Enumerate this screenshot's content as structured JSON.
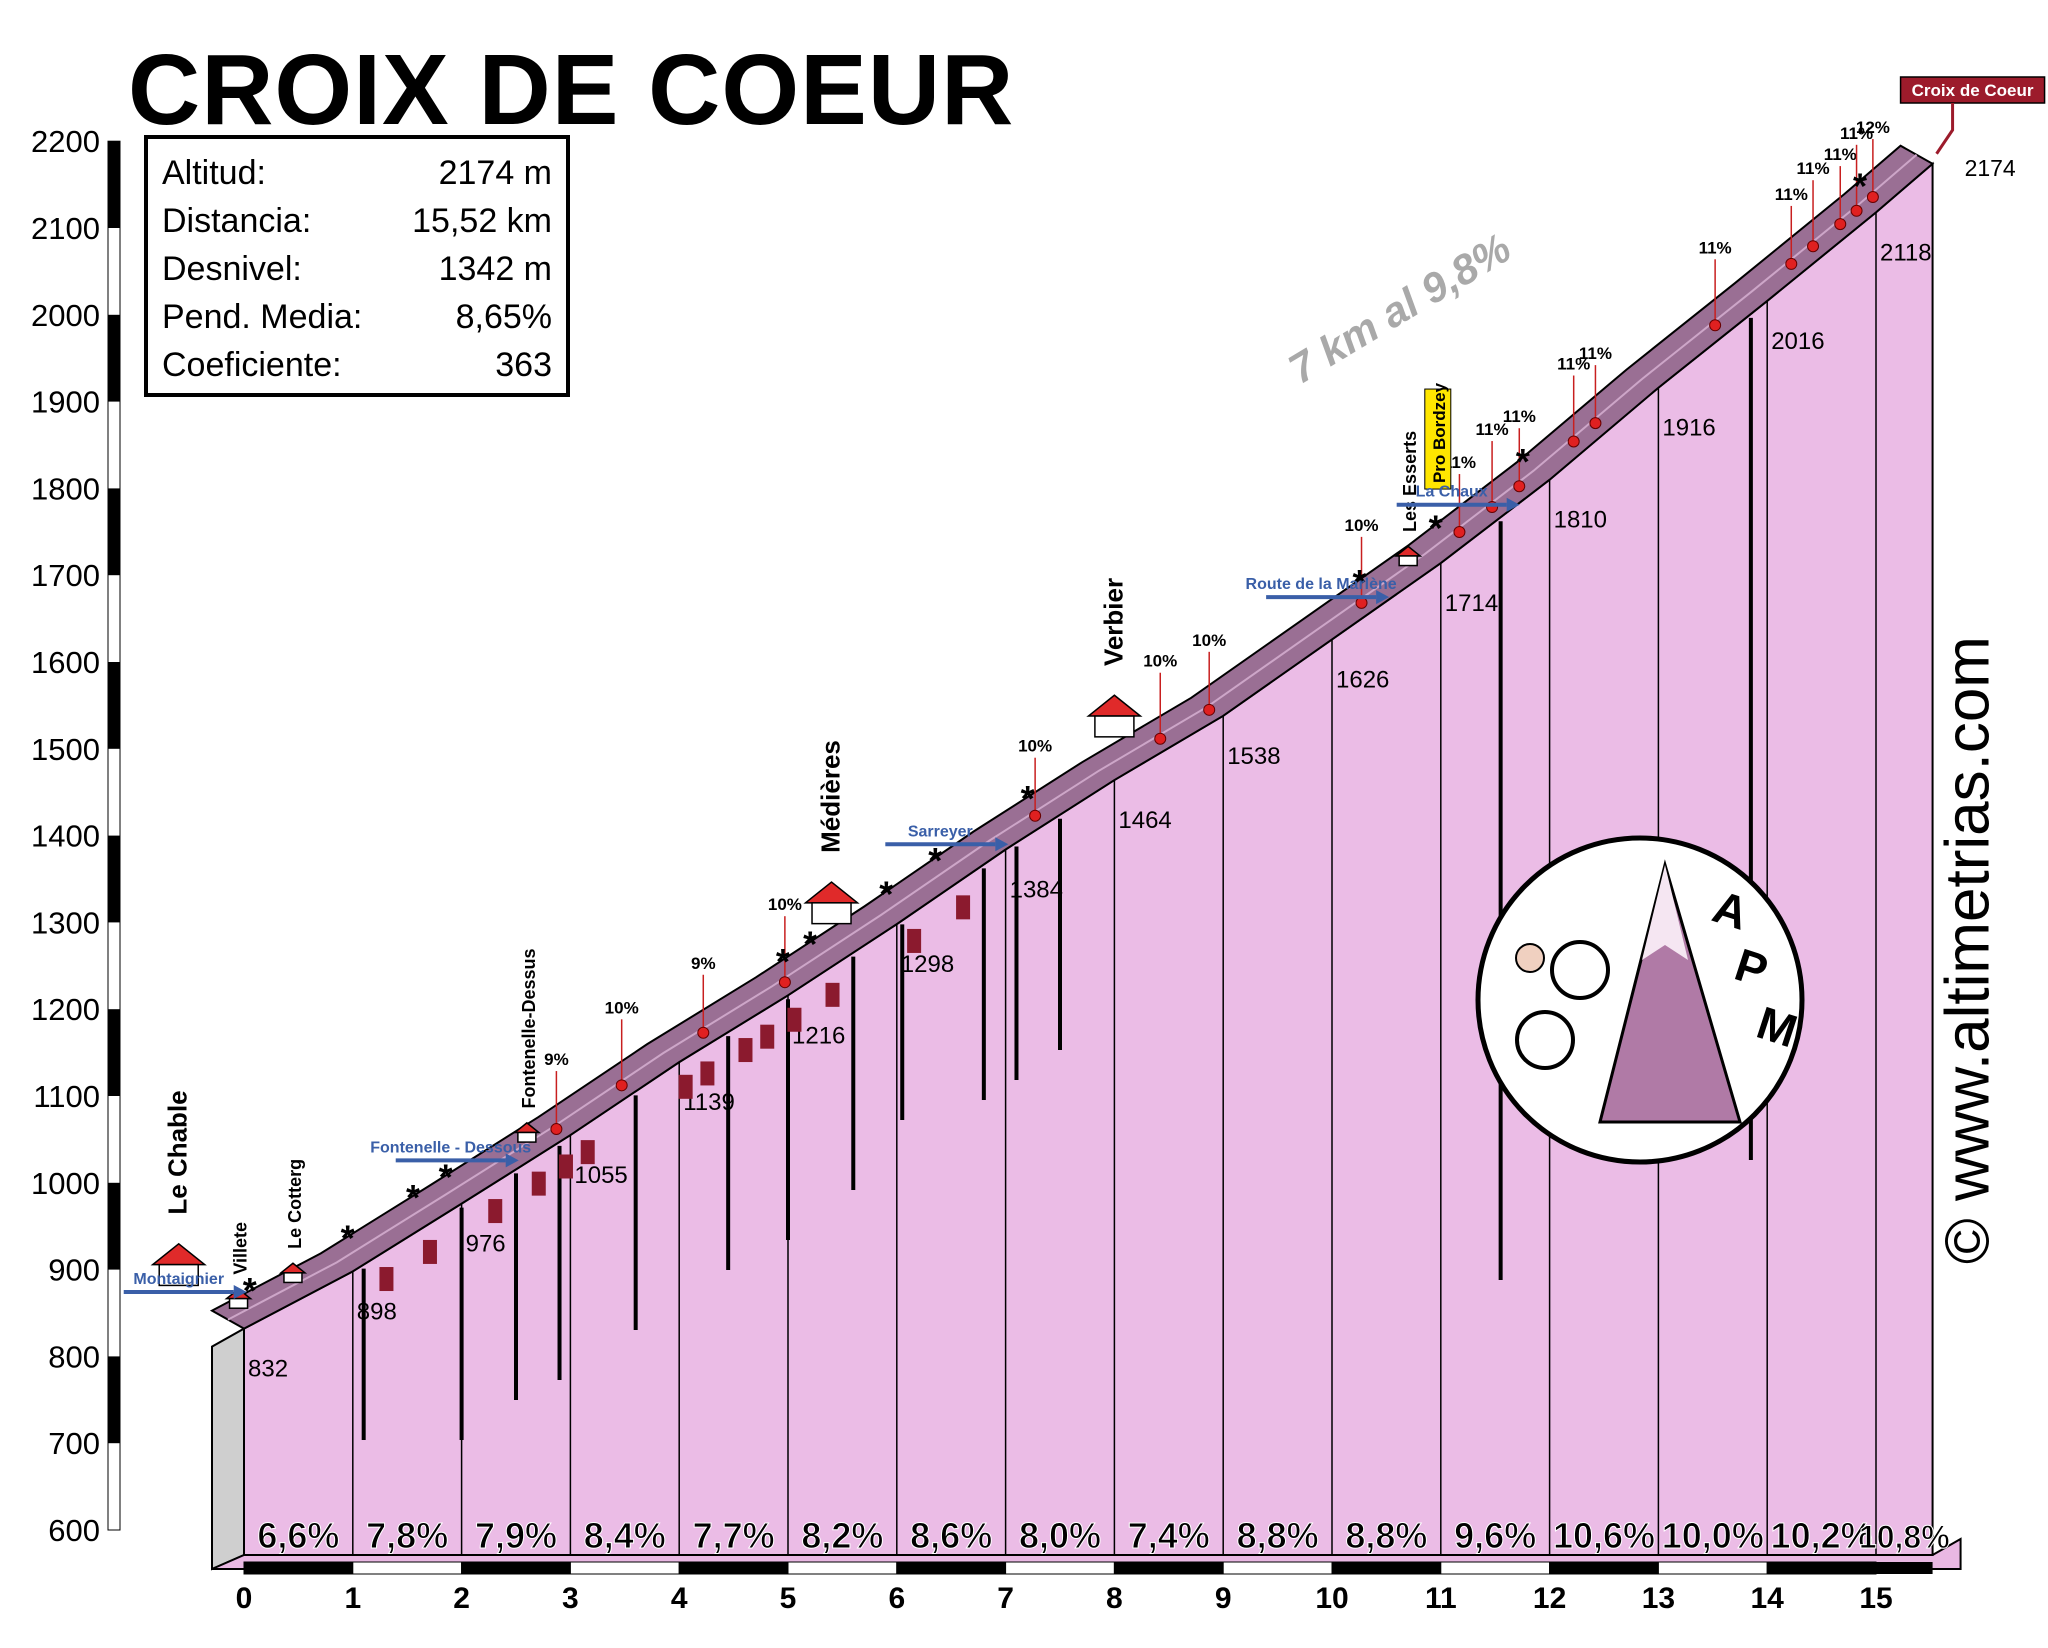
{
  "title": "CROIX DE COEUR",
  "stats": [
    {
      "label": "Altitud:",
      "value": "2174 m"
    },
    {
      "label": "Distancia:",
      "value": "15,52 km"
    },
    {
      "label": "Desnivel:",
      "value": "1342 m"
    },
    {
      "label": "Pend. Media:",
      "value": "8,65%"
    },
    {
      "label": "Coeficiente:",
      "value": "363"
    }
  ],
  "website": "© www.altimetrias.com",
  "logo_text": "APM",
  "summit_label": "Croix de Coeur",
  "highlight_text": "7 km al 9,8%",
  "colors": {
    "profile_fill": "#ebbce6",
    "road": "#9a6f94",
    "marker": "#e02020",
    "arrow": "#3a5fa8",
    "signal": "#8b1a2e"
  },
  "chart_data": {
    "type": "area",
    "title": "CROIX DE COEUR",
    "xlabel": "",
    "ylabel": "",
    "xlim": [
      0,
      15.52
    ],
    "ylim": [
      600,
      2200
    ],
    "x_ticks": [
      "0",
      "1",
      "2",
      "3",
      "4",
      "5",
      "6",
      "7",
      "8",
      "9",
      "10",
      "11",
      "12",
      "13",
      "14",
      "15"
    ],
    "y_ticks": [
      "600",
      "700",
      "800",
      "900",
      "1000",
      "1100",
      "1200",
      "1300",
      "1400",
      "1500",
      "1600",
      "1700",
      "1800",
      "1900",
      "2000",
      "2100",
      "2200"
    ],
    "profile": [
      {
        "km": 0,
        "alt": 832
      },
      {
        "km": 1,
        "alt": 898
      },
      {
        "km": 2,
        "alt": 976
      },
      {
        "km": 3,
        "alt": 1055
      },
      {
        "km": 4,
        "alt": 1139
      },
      {
        "km": 5,
        "alt": 1216
      },
      {
        "km": 6,
        "alt": 1298
      },
      {
        "km": 7,
        "alt": 1384
      },
      {
        "km": 8,
        "alt": 1464
      },
      {
        "km": 9,
        "alt": 1538
      },
      {
        "km": 10,
        "alt": 1626
      },
      {
        "km": 11,
        "alt": 1714
      },
      {
        "km": 12,
        "alt": 1810
      },
      {
        "km": 13,
        "alt": 1916
      },
      {
        "km": 14,
        "alt": 2016
      },
      {
        "km": 15,
        "alt": 2118
      },
      {
        "km": 15.52,
        "alt": 2174
      }
    ],
    "altitude_labels": [
      "832",
      "898",
      "976",
      "1055",
      "1139",
      "1216",
      "1298",
      "1384",
      "1464",
      "1538",
      "1626",
      "1714",
      "1810",
      "1916",
      "2016",
      "2118",
      "2174"
    ],
    "segment_gradients": [
      "6,6%",
      "7,8%",
      "7,9%",
      "8,4%",
      "7,7%",
      "8,2%",
      "8,6%",
      "8,0%",
      "7,4%",
      "8,8%",
      "8,8%",
      "9,6%",
      "10,6%",
      "10,0%",
      "10,2%",
      "10,8%"
    ],
    "places": [
      {
        "name": "Le Chable",
        "km": -0.6
      },
      {
        "name": "Villete",
        "km": -0.05
      },
      {
        "name": "Le Cotterg",
        "km": 0.45
      },
      {
        "name": "Fontenelle-Dessus",
        "km": 2.6
      },
      {
        "name": "Médières",
        "km": 5.4
      },
      {
        "name": "Verbier",
        "km": 8.0
      },
      {
        "name": "Les Esserts",
        "km": 10.7
      },
      {
        "name": "Pro Bordzey",
        "km": 11.0
      }
    ],
    "roads": [
      {
        "name": "Montaignier",
        "km": -0.6
      },
      {
        "name": "Fontenelle - Dessous",
        "km": 1.9
      },
      {
        "name": "Sarreyer",
        "km": 6.4
      },
      {
        "name": "Route de la Marlène",
        "km": 9.9
      },
      {
        "name": "La Chaux",
        "km": 11.1
      }
    ],
    "gradient_peaks": [
      {
        "label": "9%",
        "km": 3.0
      },
      {
        "label": "10%",
        "km": 3.6
      },
      {
        "label": "9%",
        "km": 4.35
      },
      {
        "label": "10%",
        "km": 5.1
      },
      {
        "label": "10%",
        "km": 7.4
      },
      {
        "label": "10%",
        "km": 8.55
      },
      {
        "label": "10%",
        "km": 9.0
      },
      {
        "label": "10%",
        "km": 10.4
      },
      {
        "label": "11%",
        "km": 11.3
      },
      {
        "label": "11%",
        "km": 11.6
      },
      {
        "label": "11%",
        "km": 11.85
      },
      {
        "label": "11%",
        "km": 12.35
      },
      {
        "label": "11%",
        "km": 12.55
      },
      {
        "label": "11%",
        "km": 13.65
      },
      {
        "label": "11%",
        "km": 14.35
      },
      {
        "label": "11%",
        "km": 14.55
      },
      {
        "label": "11%",
        "km": 14.8
      },
      {
        "label": "11%",
        "km": 14.95
      },
      {
        "label": "12%",
        "km": 15.1
      }
    ]
  }
}
